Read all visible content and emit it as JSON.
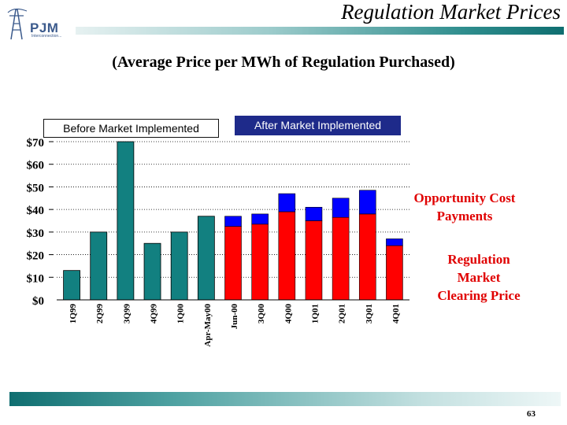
{
  "header": {
    "title": "Regulation Market Prices",
    "logo_text": "PJM",
    "logo_sub": "Interconnection..."
  },
  "subtitle": "(Average Price per MWh of Regulation Purchased)",
  "annotations": {
    "before": "Before Market Implemented",
    "after": "After Market Implemented"
  },
  "legend": {
    "opportunity_line1": "Opportunity Cost",
    "opportunity_line2": "Payments",
    "regulation_line1": "Regulation",
    "regulation_line2": "Market",
    "regulation_line3": "Clearing Price"
  },
  "footer": {
    "page_number": "63"
  },
  "colors": {
    "before_bar": "#128080",
    "clearing": "#ff0000",
    "opportunity": "#0000ff",
    "after_box": "#1e2a8a",
    "legend_text": "#e00000"
  },
  "chart_data": {
    "type": "bar",
    "title": "Regulation Market Prices",
    "subtitle": "(Average Price per MWh of Regulation Purchased)",
    "xlabel": "",
    "ylabel": "",
    "ylim": [
      0,
      70
    ],
    "yticks": [
      "$0",
      "$10",
      "$20",
      "$30",
      "$40",
      "$50",
      "$60",
      "$70"
    ],
    "ytick_values": [
      0,
      10,
      20,
      30,
      40,
      50,
      60,
      70
    ],
    "stacked": true,
    "categories": [
      "1Q99",
      "2Q99",
      "3Q99",
      "4Q99",
      "1Q00",
      "Apr-May00",
      "Jun-00",
      "3Q00",
      "4Q00",
      "1Q01",
      "2Q01",
      "3Q01",
      "4Q01"
    ],
    "series": [
      {
        "name": "Before Market Implemented",
        "values": [
          13,
          30,
          70,
          25,
          30,
          37,
          0,
          0,
          0,
          0,
          0,
          0,
          0
        ]
      },
      {
        "name": "Regulation Market Clearing Price",
        "values": [
          0,
          0,
          0,
          0,
          0,
          0,
          32.5,
          33.5,
          39,
          35,
          36.5,
          38,
          24
        ]
      },
      {
        "name": "Opportunity Cost Payments",
        "values": [
          0,
          0,
          0,
          0,
          0,
          0,
          4.5,
          4.5,
          8,
          6,
          8.5,
          10.5,
          3
        ]
      }
    ]
  }
}
